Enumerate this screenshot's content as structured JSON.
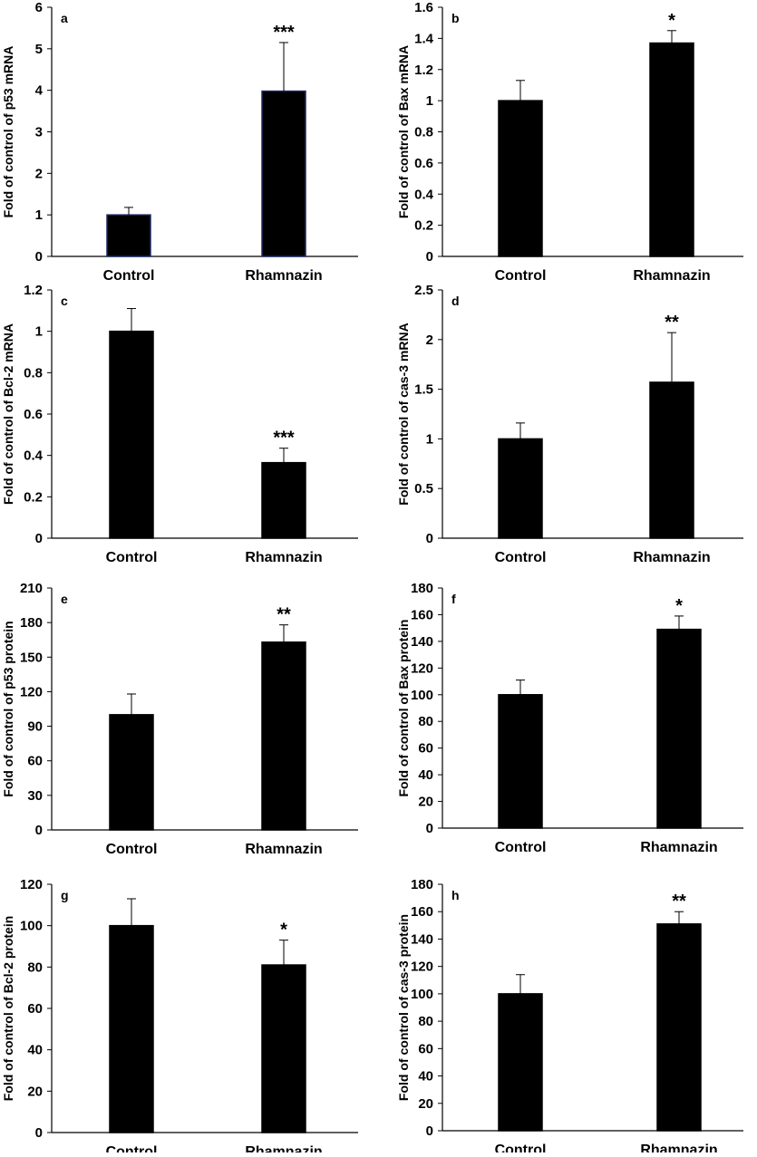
{
  "panels": [
    {
      "label": "a",
      "type": "bar",
      "ylabel": "Fold of control of p53 mRNA",
      "categories": [
        "Control",
        "Rhamnazin"
      ],
      "values": [
        1,
        3.98
      ],
      "errors": [
        0.18,
        1.17
      ],
      "significance": [
        "",
        "***"
      ],
      "ylim": [
        0,
        6
      ],
      "yticks": [
        "0",
        "1",
        "2",
        "3",
        "4",
        "5",
        "6"
      ],
      "bar_color": "#000000",
      "bar_edge_color": "#1f2a60"
    },
    {
      "label": "b",
      "type": "bar",
      "ylabel": "Fold of control of Bax mRNA",
      "categories": [
        "Control",
        "Rhamnazin"
      ],
      "values": [
        1,
        1.37
      ],
      "errors": [
        0.13,
        0.08
      ],
      "significance": [
        "",
        "*"
      ],
      "ylim": [
        0,
        1.6
      ],
      "yticks": [
        "0",
        "0.2",
        "0.4",
        "0.6",
        "0.8",
        "1",
        "1.2",
        "1.4",
        "1.6"
      ],
      "bar_color": "#000000"
    },
    {
      "label": "c",
      "type": "bar",
      "ylabel": "Fold of control of Bcl-2 mRNA",
      "categories": [
        "Control",
        "Rhamnazin"
      ],
      "values": [
        1,
        0.365
      ],
      "errors": [
        0.11,
        0.07
      ],
      "significance": [
        "",
        "***"
      ],
      "ylim": [
        0,
        1.2
      ],
      "yticks": [
        "0",
        "0.2",
        "0.4",
        "0.6",
        "0.8",
        "1",
        "1.2"
      ],
      "bar_color": "#000000"
    },
    {
      "label": "d",
      "type": "bar",
      "ylabel": "Fold of control of cas-3 mRNA",
      "categories": [
        "Control",
        "Rhamnazin"
      ],
      "values": [
        1,
        1.57
      ],
      "errors": [
        0.16,
        0.5
      ],
      "significance": [
        "",
        "**"
      ],
      "ylim": [
        0,
        2.5
      ],
      "yticks": [
        "0",
        "0.5",
        "1",
        "1.5",
        "2",
        "2.5"
      ],
      "bar_color": "#000000"
    },
    {
      "label": "e",
      "type": "bar",
      "ylabel": "Fold of control of p53 protein",
      "categories": [
        "Control",
        "Rhamnazin"
      ],
      "values": [
        100,
        163
      ],
      "errors": [
        18,
        15
      ],
      "significance": [
        "",
        "**"
      ],
      "ylim": [
        0,
        210
      ],
      "yticks": [
        "0",
        "30",
        "60",
        "90",
        "120",
        "150",
        "180",
        "210"
      ],
      "bar_color": "#000000"
    },
    {
      "label": "f",
      "type": "bar",
      "ylabel": "Fold of control of Bax protein",
      "categories": [
        "Control",
        "Rhamnazin"
      ],
      "values": [
        100,
        149
      ],
      "errors": [
        11,
        10
      ],
      "significance": [
        "",
        "*"
      ],
      "ylim": [
        0,
        180
      ],
      "yticks": [
        "0",
        "20",
        "40",
        "60",
        "80",
        "100",
        "120",
        "140",
        "160",
        "180"
      ],
      "bar_color": "#000000"
    },
    {
      "label": "g",
      "type": "bar",
      "ylabel": "Fold of control of Bcl-2 protein",
      "categories": [
        "Control",
        "Rhamnazin"
      ],
      "values": [
        100,
        81
      ],
      "errors": [
        13,
        12
      ],
      "significance": [
        "",
        "*"
      ],
      "ylim": [
        0,
        120
      ],
      "yticks": [
        "0",
        "20",
        "40",
        "60",
        "80",
        "100",
        "120"
      ],
      "bar_color": "#000000"
    },
    {
      "label": "h",
      "type": "bar",
      "ylabel": "Fold of control of cas-3 protein",
      "categories": [
        "Control",
        "Rhamnazin"
      ],
      "values": [
        100,
        151
      ],
      "errors": [
        14,
        9
      ],
      "significance": [
        "",
        "**"
      ],
      "ylim": [
        0,
        180
      ],
      "yticks": [
        "0",
        "20",
        "40",
        "60",
        "80",
        "100",
        "120",
        "140",
        "160",
        "180"
      ],
      "bar_color": "#000000"
    }
  ]
}
